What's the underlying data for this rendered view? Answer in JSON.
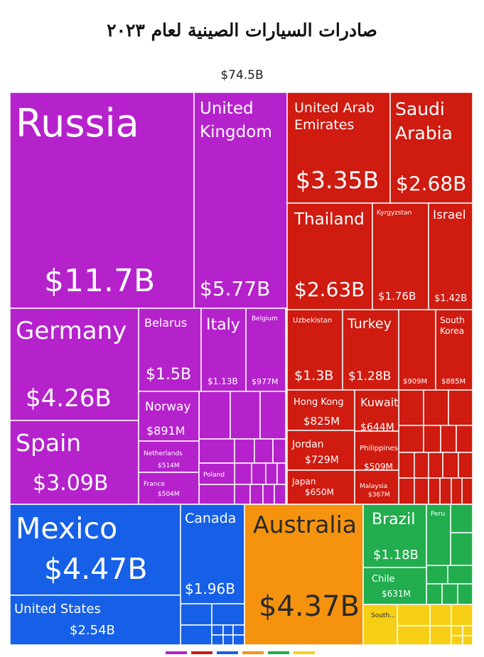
{
  "title": "صادرات السيارات الصينية لعام ٢٠٢٣",
  "total": "$74.5B",
  "colors": {
    "europe": "#b522cc",
    "asia": "#cf1b10",
    "americas": "#1660e8",
    "oceania": "#f5930f",
    "south_america": "#22ad4e",
    "africa": "#f7ce16"
  },
  "chart_data": {
    "type": "treemap",
    "title": "صادرات السيارات الصينية لعام ٢٠٢٣",
    "total": "$74.5B",
    "regions": [
      {
        "color": "#b522cc",
        "items": [
          {
            "name": "Russia",
            "value": "$11.7B"
          },
          {
            "name": "United Kingdom",
            "value": "$5.77B"
          },
          {
            "name": "Germany",
            "value": "$4.26B"
          },
          {
            "name": "Spain",
            "value": "$3.09B"
          },
          {
            "name": "Belarus",
            "value": "$1.5B"
          },
          {
            "name": "Italy",
            "value": "$1.13B"
          },
          {
            "name": "Belgium",
            "value": "$977M"
          },
          {
            "name": "Norway",
            "value": "$891M"
          },
          {
            "name": "Netherlands",
            "value": "$514M"
          },
          {
            "name": "France",
            "value": "$504M"
          },
          {
            "name": "Poland",
            "value": ""
          }
        ]
      },
      {
        "color": "#cf1b10",
        "items": [
          {
            "name": "United Arab Emirates",
            "value": "$3.35B"
          },
          {
            "name": "Saudi Arabia",
            "value": "$2.68B"
          },
          {
            "name": "Thailand",
            "value": "$2.63B"
          },
          {
            "name": "Kyrgyzstan",
            "value": "$1.76B"
          },
          {
            "name": "Israel",
            "value": "$1.42B"
          },
          {
            "name": "Uzbekistan",
            "value": "$1.3B"
          },
          {
            "name": "Turkey",
            "value": "$1.28B"
          },
          {
            "name": "",
            "value": "$909M"
          },
          {
            "name": "South Korea",
            "value": "$885M"
          },
          {
            "name": "Hong Kong",
            "value": "$825M"
          },
          {
            "name": "Kuwait",
            "value": "$644M"
          },
          {
            "name": "Jordan",
            "value": "$729M"
          },
          {
            "name": "Philippines",
            "value": "$509M"
          },
          {
            "name": "Japan",
            "value": "$650M"
          },
          {
            "name": "Malaysia",
            "value": "$367M"
          }
        ]
      },
      {
        "color": "#1660e8",
        "items": [
          {
            "name": "Mexico",
            "value": "$4.47B"
          },
          {
            "name": "Canada",
            "value": "$1.96B"
          },
          {
            "name": "United States",
            "value": "$2.54B"
          }
        ]
      },
      {
        "color": "#f5930f",
        "items": [
          {
            "name": "Australia",
            "value": "$4.37B"
          }
        ]
      },
      {
        "color": "#22ad4e",
        "items": [
          {
            "name": "Brazil",
            "value": "$1.18B"
          },
          {
            "name": "Chile",
            "value": "$631M"
          },
          {
            "name": "Peru",
            "value": ""
          }
        ]
      },
      {
        "color": "#f7ce16",
        "items": [
          {
            "name": "South...",
            "value": ""
          }
        ]
      }
    ]
  }
}
